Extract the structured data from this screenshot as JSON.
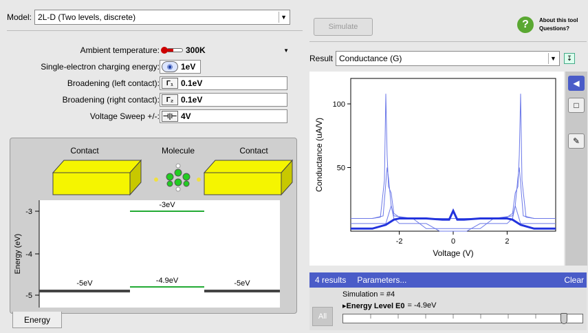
{
  "model": {
    "label": "Model:",
    "value": "2L-D (Two levels, discrete)"
  },
  "params": [
    {
      "label": "Ambient temperature:",
      "value": "300K",
      "icon": "thermometer-icon"
    },
    {
      "label": "Single-electron charging energy:",
      "value": "1eV",
      "icon": "charging-icon"
    },
    {
      "label": "Broadening (left contact):",
      "value": "0.1eV",
      "icon": "broadening-icon",
      "icon_text": "Γ₁"
    },
    {
      "label": "Broadening (right contact):",
      "value": "0.1eV",
      "icon": "broadening-icon",
      "icon_text": "Γ₂"
    },
    {
      "label": "Voltage Sweep +/-:",
      "value": "4V",
      "icon": "battery-icon",
      "icon_text": "⊣|⊢"
    }
  ],
  "viz": {
    "contact_left": "Contact",
    "molecule": "Molecule",
    "contact_right": "Contact",
    "ylabel": "Energy (eV)",
    "yticks": [
      "-3",
      "-4",
      "-5"
    ],
    "levels": {
      "upper": "-3eV",
      "lower": "-4.9eV",
      "left": "-5eV",
      "right": "-5eV"
    },
    "tab": "Energy"
  },
  "toolbar": {
    "simulate": "Simulate",
    "about_line1": "About this tool",
    "about_line2": "Questions?"
  },
  "result": {
    "label": "Result",
    "value": "Conductance (G)"
  },
  "chart_data": {
    "type": "line",
    "xlabel": "Voltage (V)",
    "ylabel": "Conductance (uA/V)",
    "xlim": [
      -3.8,
      3.8
    ],
    "ylim": [
      0,
      120
    ],
    "xticks": [
      -2,
      0,
      2
    ],
    "yticks": [
      50,
      100
    ],
    "series": [
      {
        "x": [
          -3.8,
          -3.0,
          -2.7,
          -2.55,
          -2.5,
          -2.45,
          -2.4,
          -2.3,
          -2.2,
          -2.0,
          -1.5,
          -1.0,
          -0.5,
          0,
          0.5,
          1.0,
          1.5,
          2.0,
          2.2,
          2.3,
          2.4,
          2.45,
          2.5,
          2.55,
          2.7,
          3.0,
          3.8
        ],
        "y": [
          10,
          10,
          11,
          40,
          108,
          60,
          35,
          30,
          14,
          11,
          10,
          10,
          10,
          10,
          10,
          10,
          10,
          11,
          14,
          30,
          35,
          60,
          108,
          40,
          11,
          10,
          10
        ],
        "width": 1
      },
      {
        "x": [
          -3.8,
          -3.0,
          -2.6,
          -2.45,
          -2.4,
          -2.3,
          -2.2,
          -1.5,
          -1.0,
          -0.5,
          0,
          0.5,
          1.0,
          1.5,
          2.2,
          2.3,
          2.4,
          2.45,
          2.6,
          3.0,
          3.8
        ],
        "y": [
          10,
          10,
          12,
          50,
          42,
          20,
          12,
          10,
          2,
          2,
          2,
          2,
          2,
          10,
          12,
          20,
          42,
          50,
          12,
          10,
          10
        ],
        "width": 1
      },
      {
        "x": [
          -3.8,
          -3.0,
          -2.5,
          -2.3,
          -2.2,
          -2.0,
          -1.5,
          -1.0,
          -0.5,
          0,
          0.5,
          1.0,
          1.5,
          2.0,
          2.2,
          2.3,
          2.5,
          3.0,
          3.8
        ],
        "y": [
          6,
          6,
          6,
          20,
          10,
          6,
          6,
          6,
          0,
          0,
          0,
          6,
          6,
          6,
          10,
          20,
          6,
          6,
          6
        ],
        "width": 1
      },
      {
        "x": [
          -3.8,
          -3.0,
          -2.5,
          -2.2,
          -2.0,
          -1.5,
          -1.0,
          -0.4,
          -0.15,
          0,
          0.15,
          0.4,
          1.0,
          1.5,
          2.0,
          2.2,
          2.5,
          3.0,
          3.8
        ],
        "y": [
          2,
          2,
          5,
          9,
          10,
          10,
          10,
          9,
          9,
          16,
          9,
          9,
          10,
          10,
          10,
          9,
          5,
          2,
          2
        ],
        "width": 3
      }
    ]
  },
  "results": {
    "count": "4 results",
    "params": "Parameters...",
    "clear": "Clear",
    "simulation": "Simulation = #4",
    "energy_label": "▸Energy Level E0",
    "energy_value": "= -4.9eV",
    "all": "All"
  },
  "colors": {
    "accent": "#4a5cc8",
    "line": "#2b3fd8",
    "contact": "#f5f500",
    "level": "#22aa33"
  }
}
